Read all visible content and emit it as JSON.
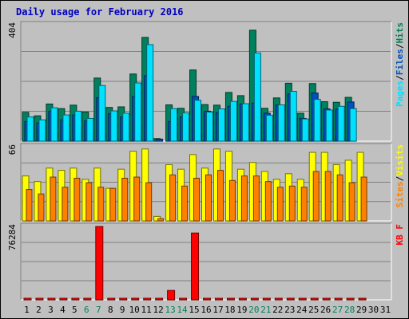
{
  "title": "Daily usage for February 2016",
  "colors": {
    "background": "#c0c0c0",
    "plot_background": "#c0c0c0",
    "title": "#0000c0",
    "hits": "#00805c",
    "files": "#0050c0",
    "pages": "#00e0ff",
    "visits": "#ffff00",
    "sites": "#ff8000",
    "kbytes": "#ff0000",
    "weekend_label": "#00805c",
    "gridline": "#808080"
  },
  "chart_data": [
    {
      "type": "bar",
      "name": "hits-files-pages",
      "y_max_label": "404",
      "ylim": [
        0,
        404
      ],
      "legend": [
        "Pages",
        "Files",
        "Hits"
      ],
      "legend_separator": "/",
      "categories": [
        "1",
        "2",
        "3",
        "4",
        "5",
        "6",
        "7",
        "8",
        "9",
        "10",
        "11",
        "12",
        "13",
        "14",
        "15",
        "16",
        "17",
        "18",
        "19",
        "20",
        "21",
        "22",
        "23",
        "24",
        "25",
        "26",
        "27",
        "28",
        "29",
        "30",
        "31"
      ],
      "series": [
        {
          "name": "Hits",
          "values": [
            100,
            88,
            129,
            113,
            125,
            101,
            219,
            117,
            119,
            233,
            360,
            9,
            126,
            114,
            247,
            127,
            125,
            169,
            158,
            385,
            114,
            150,
            201,
            97,
            200,
            137,
            135,
            152,
            0,
            0,
            0
          ]
        },
        {
          "name": "Files",
          "values": [
            68,
            63,
            104,
            74,
            91,
            70,
            151,
            95,
            84,
            155,
            227,
            7,
            68,
            84,
            155,
            104,
            99,
            121,
            130,
            132,
            97,
            126,
            164,
            79,
            167,
            112,
            111,
            136,
            0,
            0,
            0
          ]
        },
        {
          "name": "Pages",
          "values": [
            84,
            74,
            116,
            91,
            104,
            79,
            193,
            105,
            97,
            202,
            335,
            0,
            113,
            98,
            142,
            101,
            112,
            138,
            130,
            306,
            90,
            126,
            173,
            77,
            145,
            108,
            121,
            113,
            0,
            0,
            0
          ]
        }
      ]
    },
    {
      "type": "bar",
      "name": "visits-sites",
      "y_max_label": "66",
      "ylim": [
        0,
        66
      ],
      "legend": [
        "Sites",
        "Visits"
      ],
      "legend_separator": "/",
      "categories": [
        "1",
        "2",
        "3",
        "4",
        "5",
        "6",
        "7",
        "8",
        "9",
        "10",
        "11",
        "12",
        "13",
        "14",
        "15",
        "16",
        "17",
        "18",
        "19",
        "20",
        "21",
        "22",
        "23",
        "24",
        "25",
        "26",
        "27",
        "28",
        "29",
        "30",
        "31"
      ],
      "series": [
        {
          "name": "Visits",
          "values": [
            40,
            35,
            47,
            45,
            47,
            37,
            47,
            29,
            46,
            62,
            64,
            4,
            50,
            46,
            59,
            47,
            64,
            62,
            46,
            52,
            44,
            37,
            42,
            37,
            61,
            61,
            50,
            54,
            61,
            0,
            0
          ]
        },
        {
          "name": "Sites",
          "values": [
            28,
            24,
            39,
            30,
            38,
            34,
            30,
            29,
            38,
            39,
            34,
            2,
            41,
            31,
            38,
            41,
            45,
            36,
            40,
            40,
            35,
            30,
            31,
            30,
            44,
            44,
            41,
            34,
            39,
            0,
            0
          ]
        }
      ]
    },
    {
      "type": "bar",
      "name": "kbytes",
      "y_max_label": "76284",
      "ylim": [
        0,
        76284
      ],
      "legend": [
        "KB F"
      ],
      "categories": [
        "1",
        "2",
        "3",
        "4",
        "5",
        "6",
        "7",
        "8",
        "9",
        "10",
        "11",
        "12",
        "13",
        "14",
        "15",
        "16",
        "17",
        "18",
        "19",
        "20",
        "21",
        "22",
        "23",
        "24",
        "25",
        "26",
        "27",
        "28",
        "29",
        "30",
        "31"
      ],
      "series": [
        {
          "name": "KB F",
          "values": [
            1100,
            1100,
            1100,
            1100,
            1100,
            1100,
            76284,
            1100,
            1100,
            1700,
            1500,
            900,
            9800,
            1100,
            69500,
            1100,
            1100,
            1100,
            1100,
            1500,
            1100,
            1100,
            1700,
            1100,
            1700,
            1100,
            1500,
            1500,
            1100,
            0,
            0
          ]
        }
      ]
    }
  ]
}
